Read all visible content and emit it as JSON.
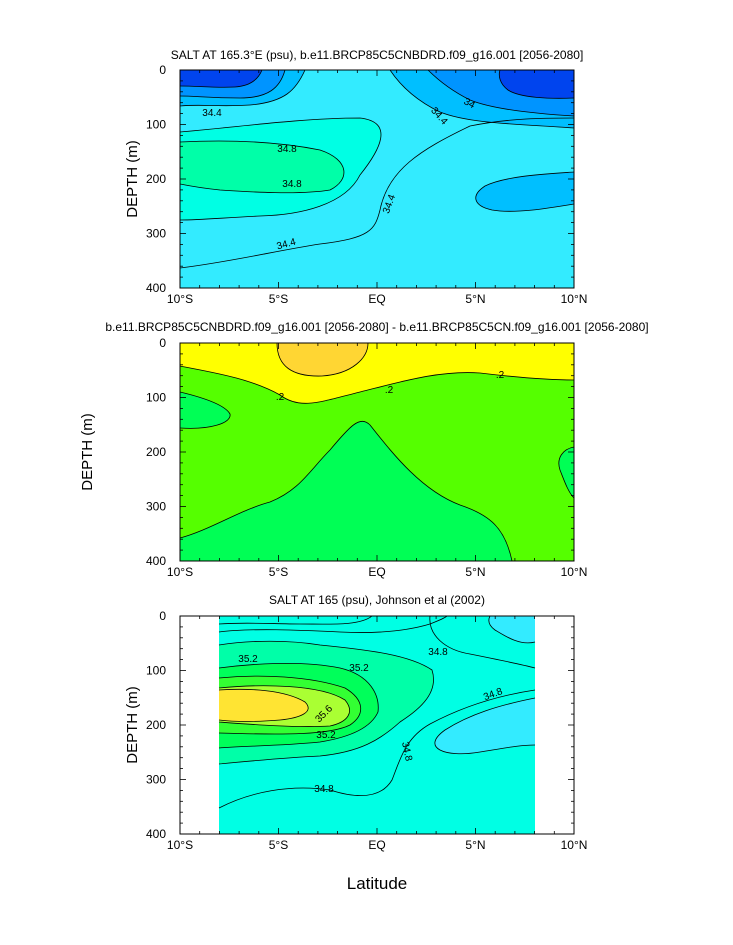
{
  "colors": {
    "salt_lt_34_0": "#0044ee",
    "salt_34_0": "#0094ff",
    "salt_34_2": "#00bfff",
    "salt_34_4": "#33ebff",
    "salt_34_8": "#00ffe4",
    "salt_35_0": "#00ffa8",
    "salt_35_2": "#00ff5a",
    "salt_35_4": "#33ff33",
    "salt_35_6": "#aaff33",
    "salt_35_8": "#ffe433",
    "diff_lt_0_2": "#00ff55",
    "diff_0_2": "#55ff00",
    "diff_0_4": "#ffff00",
    "diff_0_6": "#ffd633",
    "contour_line": "#000000"
  },
  "x_axis_label": "Latitude",
  "chart_data": [
    {
      "type": "heatmap",
      "title": "SALT AT 165.3°E (psu), b.e11.BRCP85C5CNBDRD.f09_g16.001 [2056-2080]",
      "ylabel": "DEPTH (m)",
      "xlim": [
        -10,
        10
      ],
      "ylim": [
        400,
        0
      ],
      "x_tick_labels": [
        "10°S",
        "5°S",
        "EQ",
        "5°N",
        "10°N"
      ],
      "y_tick_labels": [
        "0",
        "100",
        "200",
        "300",
        "400"
      ],
      "contour_labels": [
        "34.4",
        "34.8",
        "34.8",
        "34.4",
        "34.4",
        "34.4",
        "34"
      ],
      "fields": [
        {
          "level": "34.0-34.2",
          "lat_range": [
            -10,
            -4.5
          ],
          "depth_range": [
            0,
            50
          ]
        },
        {
          "level": "34.4-34.8",
          "lat_range": [
            -10,
            -0.5
          ],
          "depth_range": [
            110,
            280
          ]
        },
        {
          "level": "34.8+",
          "lat_range": [
            -10,
            -1.5
          ],
          "depth_range": [
            140,
            210
          ]
        },
        {
          "level": "<34.0",
          "lat_range": [
            6,
            10
          ],
          "depth_range": [
            0,
            50
          ]
        },
        {
          "level": "34.2-34.4",
          "lat_range": [
            5,
            10
          ],
          "depth_range": [
            170,
            250
          ]
        }
      ]
    },
    {
      "type": "heatmap",
      "title": "b.e11.BRCP85C5CNBDRD.f09_g16.001 [2056-2080] - b.e11.BRCP85C5CN.f09_g16.001 [2056-2080]",
      "ylabel": "DEPTH (m)",
      "xlim": [
        -10,
        10
      ],
      "ylim": [
        400,
        0
      ],
      "x_tick_labels": [
        "10°S",
        "5°S",
        "EQ",
        "5°N",
        "10°N"
      ],
      "y_tick_labels": [
        "0",
        "100",
        "200",
        "300",
        "400"
      ],
      "contour_labels": [
        ".2",
        ".2",
        ".2"
      ],
      "fields": [
        {
          "level": "0.4-0.6",
          "lat_range": [
            -10,
            10
          ],
          "depth_range": [
            0,
            110
          ]
        },
        {
          "level": "0.6+",
          "lat_range": [
            -5,
            -0.5
          ],
          "depth_range": [
            0,
            60
          ]
        },
        {
          "level": "0.2-0.4",
          "lat_range": [
            -10,
            10
          ],
          "depth_range": [
            50,
            400
          ]
        },
        {
          "level": "<0.2",
          "lat_range": [
            -10,
            7
          ],
          "depth_range": [
            150,
            400
          ]
        }
      ]
    },
    {
      "type": "heatmap",
      "title": "SALT AT 165 (psu), Johnson et al (2002)",
      "ylabel": "DEPTH (m)",
      "xlim": [
        -10,
        10
      ],
      "ylim": [
        400,
        0
      ],
      "data_lat_range": [
        -8,
        8
      ],
      "x_tick_labels": [
        "10°S",
        "5°S",
        "EQ",
        "5°N",
        "10°N"
      ],
      "y_tick_labels": [
        "0",
        "100",
        "200",
        "300",
        "400"
      ],
      "contour_labels": [
        "35.2",
        "35.2",
        "34.8",
        "35.6",
        "35.2",
        "34.8",
        "34.8",
        "34.8"
      ],
      "fields": [
        {
          "level": "35.0-35.2",
          "lat_range": [
            -8,
            3
          ],
          "depth_range": [
            60,
            270
          ]
        },
        {
          "level": "35.2-35.4",
          "lat_range": [
            -8,
            0.5
          ],
          "depth_range": [
            90,
            240
          ]
        },
        {
          "level": "35.4-35.6",
          "lat_range": [
            -8,
            -0.5
          ],
          "depth_range": [
            120,
            215
          ]
        },
        {
          "level": "35.6-35.8",
          "lat_range": [
            -8,
            -1.5
          ],
          "depth_range": [
            135,
            200
          ]
        },
        {
          "level": "35.8+",
          "lat_range": [
            -8,
            -3.5
          ],
          "depth_range": [
            150,
            190
          ]
        },
        {
          "level": "34.4-34.8",
          "lat_range": [
            3,
            8
          ],
          "depth_range": [
            160,
            400
          ]
        }
      ]
    }
  ]
}
